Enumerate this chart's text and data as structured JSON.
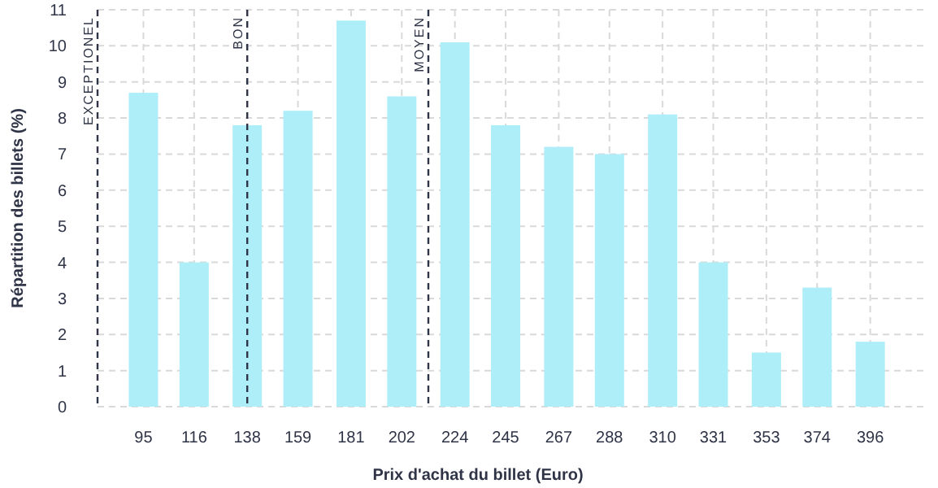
{
  "chart_data": {
    "type": "bar",
    "xlabel": "Prix d'achat du billet (Euro)",
    "ylabel": "Répartition des billets (%)",
    "x": [
      95,
      116,
      138,
      159,
      181,
      202,
      224,
      245,
      267,
      288,
      310,
      331,
      353,
      374,
      396
    ],
    "values": [
      8.7,
      4.0,
      7.8,
      8.2,
      10.7,
      8.6,
      10.1,
      7.8,
      7.2,
      7.0,
      8.1,
      4.0,
      1.5,
      3.3,
      1.8
    ],
    "color": "#aeeef8",
    "xlim": [
      76,
      418
    ],
    "xticks": [
      95,
      116,
      138,
      159,
      181,
      202,
      224,
      245,
      267,
      288,
      310,
      331,
      353,
      374,
      396
    ],
    "ylim": [
      0,
      11
    ],
    "yticks": [
      0,
      1,
      2,
      3,
      4,
      5,
      6,
      7,
      8,
      9,
      10,
      11
    ],
    "grid": true,
    "ref_lines": [
      {
        "axis": "x",
        "value": 76,
        "label": "EXCEPTIONEL",
        "color": "#2f3447",
        "line_style": "dashed"
      },
      {
        "axis": "x",
        "value": 138,
        "label": "BON",
        "color": "#2f3447",
        "line_style": "dashed"
      },
      {
        "axis": "x",
        "value": 213,
        "label": "MOYEN",
        "color": "#2f3447",
        "line_style": "dashed"
      }
    ]
  }
}
